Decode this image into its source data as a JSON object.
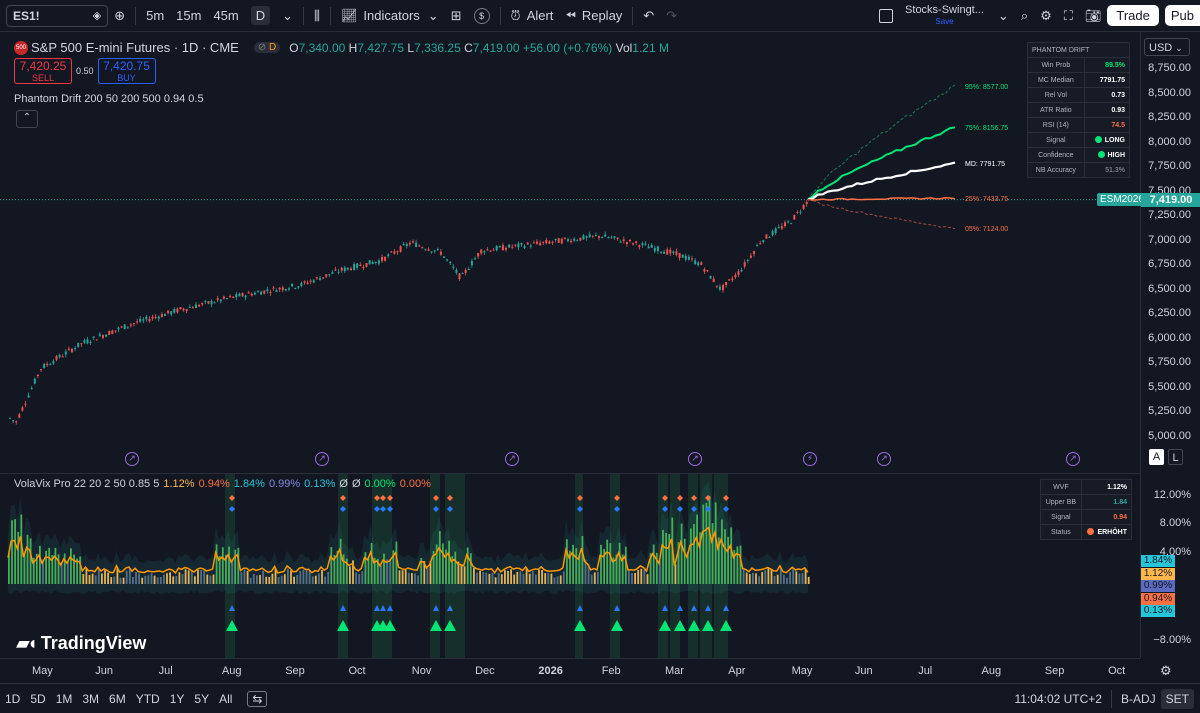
{
  "topbar": {
    "symbol": "ES1!",
    "intervals": [
      "5m",
      "15m",
      "45m",
      "D"
    ],
    "indicators_label": "Indicators",
    "alert_label": "Alert",
    "replay_label": "Replay",
    "layout_name": "Stocks-Swingt...",
    "layout_status": "Save",
    "trade_label": "Trade",
    "publish_label": "Pub"
  },
  "legend": {
    "title": "S&P 500 E-mini Futures · 1D · CME",
    "badge": "500",
    "o_label": "O",
    "o": "7,340.00",
    "h_label": "H",
    "h": "7,427.75",
    "l_label": "L",
    "l": "7,336.25",
    "c_label": "C",
    "c": "7,419.00",
    "change": "+56.00 (+0.76%)",
    "vol_label": "Vol",
    "vol": "1.21 M",
    "d_badge": "D"
  },
  "order": {
    "sell_price": "7,420.25",
    "sell_label": "SELL",
    "spread": "0.50",
    "buy_price": "7,420.75",
    "buy_label": "BUY"
  },
  "indicator1": "Phantom Drift 200 50 200 500 0.94 0.5",
  "phantom_table": {
    "header": "PHANTOM DRIFT",
    "rows": [
      {
        "k": "Win Prob",
        "v": "89.5%",
        "c": "#00e676"
      },
      {
        "k": "MC Median",
        "v": "7791.75",
        "c": "#ffffff"
      },
      {
        "k": "Rel Vol",
        "v": "0.73",
        "c": "#ffffff"
      },
      {
        "k": "ATR Ratio",
        "v": "0.93",
        "c": "#ffffff"
      },
      {
        "k": "RSI (14)",
        "v": "74.5",
        "c": "#ff7043"
      },
      {
        "k": "Signal",
        "v": "LONG",
        "c": "#ffffff"
      },
      {
        "k": "Confidence",
        "v": "HIGH",
        "c": "#ffffff"
      },
      {
        "k": "NB Accuracy",
        "v": "51.3%",
        "c": "#787b86"
      }
    ]
  },
  "projection_labels": {
    "p95": "95%: 8577.00",
    "p75": "75%: 8156.75",
    "md": "MD: 7791.75",
    "p25": "25%: 7433.75",
    "p05": "05%: 7124.00"
  },
  "price_axis": {
    "currency": "USD",
    "ticks": [
      "8,750.00",
      "8,500.00",
      "8,250.00",
      "8,000.00",
      "7,750.00",
      "7,500.00",
      "7,250.00",
      "7,000.00",
      "6,750.00",
      "6,500.00",
      "6,250.00",
      "6,000.00",
      "5,750.00",
      "5,500.00",
      "5,250.00",
      "5,000.00"
    ],
    "contract_tag": "ESM2026",
    "last_price": "7,419.00"
  },
  "indicator2": {
    "name": "VolaVix Pro 22 20 2 50 0.85 5",
    "values": [
      {
        "v": "1.12%",
        "c": "#ffb74d"
      },
      {
        "v": "0.94%",
        "c": "#ff7043"
      },
      {
        "v": "1.84%",
        "c": "#26c6da"
      },
      {
        "v": "0.99%",
        "c": "#7e8ad8"
      },
      {
        "v": "0.13%",
        "c": "#26c6da"
      },
      {
        "v": "Ø",
        "c": "#d1d4dc"
      },
      {
        "v": "Ø",
        "c": "#d1d4dc"
      },
      {
        "v": "0.00%",
        "c": "#00e676"
      },
      {
        "v": "0.00%",
        "c": "#ff7043"
      }
    ]
  },
  "volavix_table": {
    "rows": [
      {
        "k": "WVF",
        "v": "1.12%",
        "c": "#ffffff"
      },
      {
        "k": "Upper BB",
        "v": "1.84",
        "c": "#26a69a"
      },
      {
        "k": "Signal",
        "v": "0.94",
        "c": "#ff7043"
      },
      {
        "k": "Status",
        "v": "ERHÖHT",
        "c": "#ffffff"
      }
    ]
  },
  "vol_axis": {
    "ticks": [
      "12.00%",
      "8.00%",
      "4.00%",
      "−8.00%"
    ],
    "tags": [
      {
        "v": "1.84%",
        "bg": "#26c6da"
      },
      {
        "v": "1.12%",
        "bg": "#ffb74d"
      },
      {
        "v": "0.99%",
        "bg": "#5c6bc0"
      },
      {
        "v": "0.94%",
        "bg": "#ff7043"
      },
      {
        "v": "0.13%",
        "bg": "#26c6da"
      }
    ]
  },
  "time_axis": [
    "May",
    "Jun",
    "Jul",
    "Aug",
    "Sep",
    "Oct",
    "Nov",
    "Dec",
    "2026",
    "Feb",
    "Mar",
    "Apr",
    "May",
    "Jun",
    "Jul",
    "Aug",
    "Sep",
    "Oct"
  ],
  "bottombar": {
    "ranges": [
      "1D",
      "5D",
      "1M",
      "3M",
      "6M",
      "YTD",
      "1Y",
      "5Y",
      "All"
    ],
    "clock": "11:04:02 UTC+2",
    "adj": "B-ADJ",
    "session": "SET"
  },
  "scale_buttons": {
    "auto": "A",
    "log": "L"
  },
  "brand": "TradingView",
  "colors": {
    "up": "#26a69a",
    "down": "#ef5350",
    "bg": "#131722"
  }
}
